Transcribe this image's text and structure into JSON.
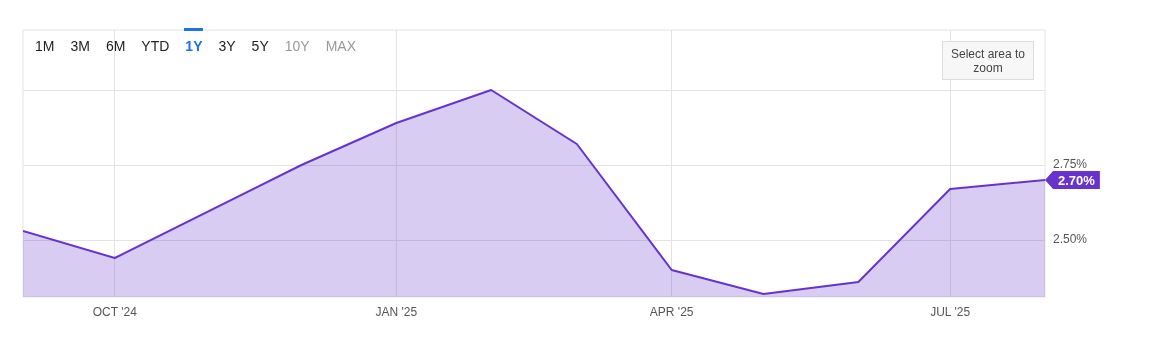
{
  "chart_data": {
    "type": "area",
    "x": [
      "2024-09-01",
      "2024-10-01",
      "2024-12-01",
      "2025-01-01",
      "2025-02-01",
      "2025-03-01",
      "2025-04-01",
      "2025-05-01",
      "2025-06-01",
      "2025-07-01",
      "2025-08-01"
    ],
    "series": [
      {
        "color": "#6633cc",
        "values": [
          2.53,
          2.44,
          2.75,
          2.89,
          3.0,
          2.82,
          2.4,
          2.32,
          2.36,
          2.67,
          2.7
        ],
        "value_labels": [
          null,
          null,
          null,
          null,
          null,
          null,
          null,
          null,
          null,
          null,
          "2.70%"
        ]
      }
    ],
    "xlim": [
      "2024-09-01",
      "2025-08-01"
    ],
    "xticks": [
      {
        "value": "2024-10-01",
        "label": "OCT '24"
      },
      {
        "value": "2025-01-01",
        "label": "JAN '25"
      },
      {
        "value": "2025-04-01",
        "label": "APR '25"
      },
      {
        "value": "2025-07-01",
        "label": "JUL '25"
      }
    ],
    "ylim": [
      2.31,
      3.2
    ],
    "yticks": [
      {
        "value": 2.5,
        "label": "2.50%"
      },
      {
        "value": 2.75,
        "label": "2.75%"
      },
      {
        "value": 3.0,
        "label": null
      }
    ],
    "grid": true,
    "legend": false,
    "marker": "none",
    "annotations": [
      "1M",
      "3M",
      "6M",
      "YTD",
      "1Y",
      "3Y",
      "5Y",
      "10Y",
      "MAX",
      "Select area to zoom"
    ]
  }
}
